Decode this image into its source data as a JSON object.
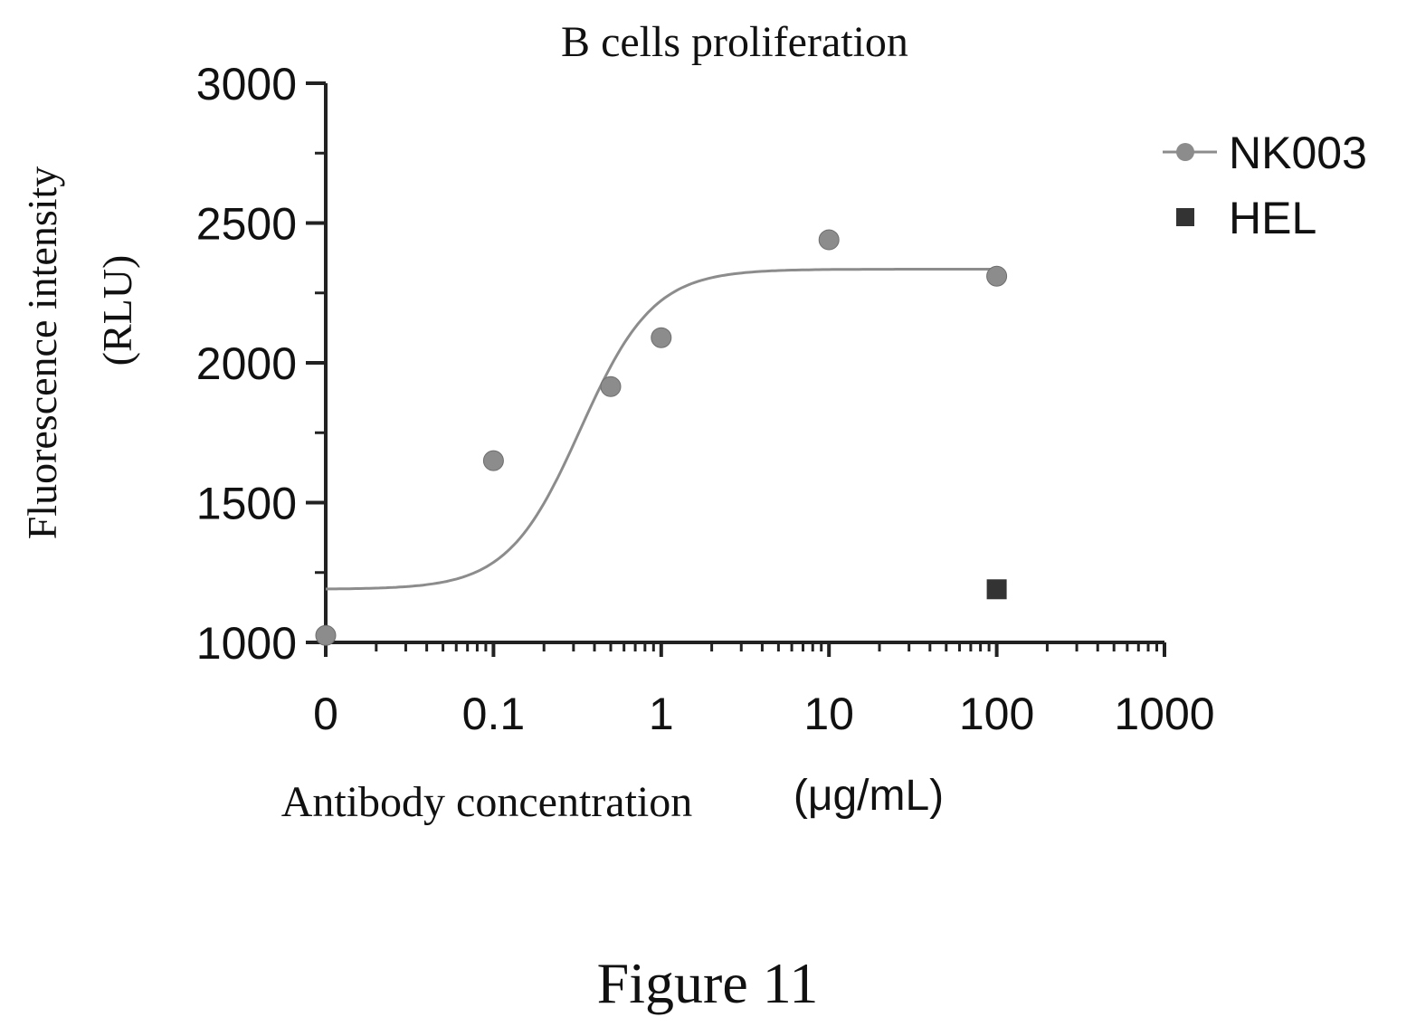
{
  "chart_data": {
    "type": "scatter",
    "title": "B cells proliferation",
    "ylabel_line1": "Fluorescence intensity",
    "ylabel_line2": "(RLU)",
    "xlabel_text": "Antibody concentration",
    "xlabel_unit": "(μg/mL)",
    "x_scale": "log",
    "x_ticks": [
      {
        "value": 0.01,
        "label": "0"
      },
      {
        "value": 0.1,
        "label": "0.1"
      },
      {
        "value": 1,
        "label": "1"
      },
      {
        "value": 10,
        "label": "10"
      },
      {
        "value": 100,
        "label": "100"
      },
      {
        "value": 1000,
        "label": "1000"
      }
    ],
    "ylim": [
      1000,
      3000
    ],
    "y_ticks": [
      1000,
      1500,
      2000,
      2500,
      3000
    ],
    "grid": false,
    "legend_position": "top-right",
    "colors": {
      "nk003": "#8c8c8c",
      "hel": "#333333",
      "axis": "#222222"
    },
    "series": [
      {
        "name": "NK003",
        "marker": "circle",
        "fit_line": true,
        "points": [
          {
            "x": 0.01,
            "y": 1025
          },
          {
            "x": 0.1,
            "y": 1650
          },
          {
            "x": 0.5,
            "y": 1915
          },
          {
            "x": 1,
            "y": 2090
          },
          {
            "x": 10,
            "y": 2440
          },
          {
            "x": 100,
            "y": 2310
          }
        ]
      },
      {
        "name": "HEL",
        "marker": "square",
        "fit_line": false,
        "points": [
          {
            "x": 100,
            "y": 1190
          }
        ]
      }
    ]
  },
  "caption": "Figure 11"
}
